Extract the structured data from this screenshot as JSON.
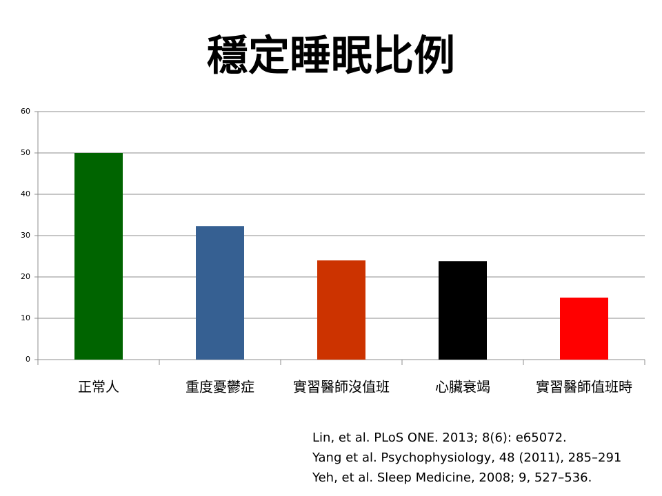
{
  "chart_data": {
    "type": "bar",
    "title": "穩定睡眠比例",
    "categories": [
      "正常人",
      "重度憂鬱症",
      "實習醫師沒值班",
      "心臟衰竭",
      "實習醫師值班時"
    ],
    "values": [
      50,
      32.3,
      24,
      23.8,
      15
    ],
    "colors": [
      "#006400",
      "#366092",
      "#cc3300",
      "#000000",
      "#ff0000"
    ],
    "ylim": [
      0,
      60
    ],
    "yticks": [
      0,
      10,
      20,
      30,
      40,
      50,
      60
    ],
    "grid": true
  },
  "citations": [
    "Lin, et al. PLoS ONE. 2013; 8(6): e65072.",
    "Yang et al. Psychophysiology, 48 (2011), 285–291",
    "Yeh, et al. Sleep Medicine, 2008; 9, 527–536."
  ]
}
